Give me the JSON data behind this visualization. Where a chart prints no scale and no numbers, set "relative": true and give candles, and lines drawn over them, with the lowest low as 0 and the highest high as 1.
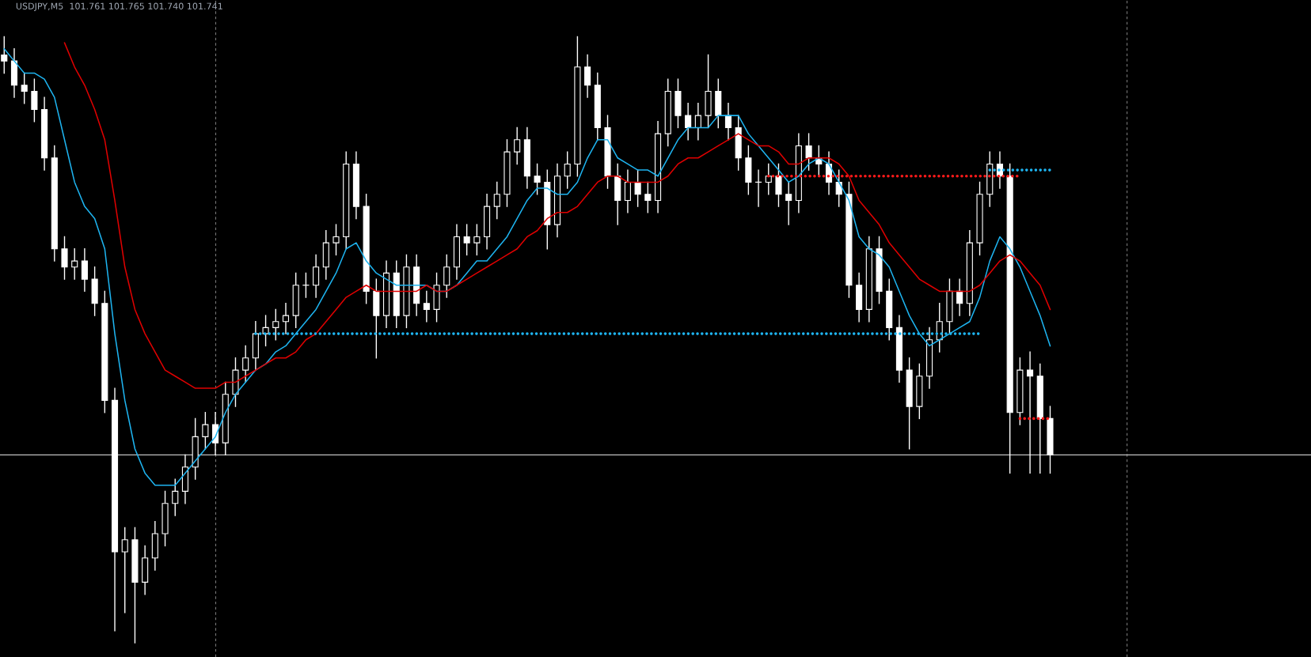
{
  "chart_data": {
    "type": "candlestick",
    "title": "USDJPY,M5  101.761 101.765 101.740 101.741",
    "relative": true,
    "color": "#ffffff",
    "legend": false,
    "categories": [
      null,
      null,
      null,
      null,
      null,
      null,
      null,
      null,
      null,
      null,
      null,
      null,
      null,
      null,
      null,
      null,
      null,
      null,
      null,
      null,
      null,
      null,
      null,
      null,
      null,
      null,
      null,
      null,
      null,
      null,
      null,
      null,
      null,
      null,
      null,
      null,
      null,
      null,
      null,
      null,
      null,
      null,
      null,
      null,
      null,
      null,
      null,
      null,
      null,
      null,
      null,
      null,
      null,
      null,
      null,
      null,
      null,
      null,
      null,
      null,
      null,
      null,
      null,
      null,
      null,
      null,
      null,
      null,
      null,
      null,
      null,
      null,
      null,
      null,
      null,
      null,
      null,
      null,
      null,
      null,
      null,
      null,
      null,
      null,
      null,
      null,
      null,
      null,
      null,
      null,
      null,
      null,
      null,
      null,
      null,
      null,
      null,
      null,
      null,
      null,
      null,
      null,
      null,
      null,
      null
    ],
    "ohlc": [
      [
        0.97,
        1.0,
        0.94,
        0.96
      ],
      [
        0.96,
        0.98,
        0.9,
        0.92
      ],
      [
        0.92,
        0.94,
        0.89,
        0.91
      ],
      [
        0.91,
        0.93,
        0.86,
        0.88
      ],
      [
        0.88,
        0.9,
        0.78,
        0.8
      ],
      [
        0.8,
        0.82,
        0.63,
        0.65
      ],
      [
        0.65,
        0.67,
        0.6,
        0.62
      ],
      [
        0.62,
        0.65,
        0.6,
        0.63
      ],
      [
        0.63,
        0.65,
        0.58,
        0.6
      ],
      [
        0.6,
        0.62,
        0.54,
        0.56
      ],
      [
        0.56,
        0.58,
        0.38,
        0.4
      ],
      [
        0.4,
        0.42,
        0.02,
        0.15
      ],
      [
        0.15,
        0.19,
        0.05,
        0.17
      ],
      [
        0.17,
        0.19,
        0.0,
        0.1
      ],
      [
        0.1,
        0.16,
        0.08,
        0.14
      ],
      [
        0.14,
        0.2,
        0.12,
        0.18
      ],
      [
        0.18,
        0.25,
        0.16,
        0.23
      ],
      [
        0.23,
        0.27,
        0.21,
        0.25
      ],
      [
        0.25,
        0.31,
        0.23,
        0.29
      ],
      [
        0.29,
        0.37,
        0.27,
        0.34
      ],
      [
        0.34,
        0.38,
        0.32,
        0.36
      ],
      [
        0.36,
        0.38,
        0.31,
        0.33
      ],
      [
        0.33,
        0.43,
        0.31,
        0.41
      ],
      [
        0.41,
        0.47,
        0.39,
        0.45
      ],
      [
        0.45,
        0.49,
        0.43,
        0.47
      ],
      [
        0.47,
        0.53,
        0.45,
        0.51
      ],
      [
        0.51,
        0.54,
        0.49,
        0.52
      ],
      [
        0.52,
        0.55,
        0.5,
        0.53
      ],
      [
        0.53,
        0.56,
        0.51,
        0.54
      ],
      [
        0.54,
        0.61,
        0.52,
        0.59
      ],
      [
        0.59,
        0.61,
        0.57,
        0.59
      ],
      [
        0.59,
        0.64,
        0.57,
        0.62
      ],
      [
        0.62,
        0.68,
        0.6,
        0.66
      ],
      [
        0.66,
        0.69,
        0.64,
        0.67
      ],
      [
        0.67,
        0.81,
        0.65,
        0.79
      ],
      [
        0.79,
        0.81,
        0.7,
        0.72
      ],
      [
        0.72,
        0.74,
        0.56,
        0.58
      ],
      [
        0.58,
        0.6,
        0.47,
        0.54
      ],
      [
        0.54,
        0.63,
        0.52,
        0.61
      ],
      [
        0.61,
        0.63,
        0.52,
        0.54
      ],
      [
        0.54,
        0.64,
        0.52,
        0.62
      ],
      [
        0.62,
        0.64,
        0.54,
        0.56
      ],
      [
        0.56,
        0.58,
        0.53,
        0.55
      ],
      [
        0.55,
        0.61,
        0.53,
        0.59
      ],
      [
        0.59,
        0.64,
        0.57,
        0.62
      ],
      [
        0.62,
        0.69,
        0.6,
        0.67
      ],
      [
        0.67,
        0.69,
        0.64,
        0.66
      ],
      [
        0.66,
        0.69,
        0.64,
        0.67
      ],
      [
        0.67,
        0.74,
        0.65,
        0.72
      ],
      [
        0.72,
        0.76,
        0.7,
        0.74
      ],
      [
        0.74,
        0.83,
        0.72,
        0.81
      ],
      [
        0.81,
        0.85,
        0.79,
        0.83
      ],
      [
        0.83,
        0.85,
        0.75,
        0.77
      ],
      [
        0.77,
        0.79,
        0.74,
        0.76
      ],
      [
        0.76,
        0.78,
        0.65,
        0.69
      ],
      [
        0.69,
        0.79,
        0.67,
        0.77
      ],
      [
        0.77,
        0.81,
        0.75,
        0.79
      ],
      [
        0.79,
        1.0,
        0.77,
        0.95
      ],
      [
        0.95,
        0.97,
        0.9,
        0.92
      ],
      [
        0.92,
        0.94,
        0.83,
        0.85
      ],
      [
        0.85,
        0.87,
        0.75,
        0.77
      ],
      [
        0.77,
        0.79,
        0.69,
        0.73
      ],
      [
        0.73,
        0.78,
        0.71,
        0.76
      ],
      [
        0.76,
        0.78,
        0.72,
        0.74
      ],
      [
        0.74,
        0.76,
        0.71,
        0.73
      ],
      [
        0.73,
        0.86,
        0.71,
        0.84
      ],
      [
        0.84,
        0.93,
        0.82,
        0.91
      ],
      [
        0.91,
        0.93,
        0.85,
        0.87
      ],
      [
        0.87,
        0.89,
        0.83,
        0.85
      ],
      [
        0.85,
        0.89,
        0.83,
        0.87
      ],
      [
        0.87,
        0.97,
        0.85,
        0.91
      ],
      [
        0.91,
        0.93,
        0.85,
        0.87
      ],
      [
        0.87,
        0.89,
        0.83,
        0.85
      ],
      [
        0.85,
        0.87,
        0.78,
        0.8
      ],
      [
        0.8,
        0.82,
        0.74,
        0.76
      ],
      [
        0.76,
        0.78,
        0.72,
        0.76
      ],
      [
        0.76,
        0.79,
        0.74,
        0.77
      ],
      [
        0.77,
        0.79,
        0.72,
        0.74
      ],
      [
        0.74,
        0.76,
        0.69,
        0.73
      ],
      [
        0.73,
        0.84,
        0.71,
        0.82
      ],
      [
        0.82,
        0.84,
        0.78,
        0.8
      ],
      [
        0.8,
        0.82,
        0.77,
        0.79
      ],
      [
        0.79,
        0.81,
        0.74,
        0.76
      ],
      [
        0.76,
        0.78,
        0.72,
        0.74
      ],
      [
        0.74,
        0.76,
        0.57,
        0.59
      ],
      [
        0.59,
        0.61,
        0.53,
        0.55
      ],
      [
        0.55,
        0.67,
        0.53,
        0.65
      ],
      [
        0.65,
        0.67,
        0.56,
        0.58
      ],
      [
        0.58,
        0.6,
        0.5,
        0.52
      ],
      [
        0.52,
        0.54,
        0.43,
        0.45
      ],
      [
        0.45,
        0.47,
        0.32,
        0.39
      ],
      [
        0.39,
        0.46,
        0.37,
        0.44
      ],
      [
        0.44,
        0.52,
        0.42,
        0.5
      ],
      [
        0.5,
        0.56,
        0.48,
        0.53
      ],
      [
        0.53,
        0.6,
        0.51,
        0.58
      ],
      [
        0.58,
        0.6,
        0.54,
        0.56
      ],
      [
        0.56,
        0.68,
        0.54,
        0.66
      ],
      [
        0.66,
        0.76,
        0.64,
        0.74
      ],
      [
        0.74,
        0.81,
        0.72,
        0.79
      ],
      [
        0.79,
        0.81,
        0.75,
        0.77
      ],
      [
        0.77,
        0.79,
        0.28,
        0.38
      ],
      [
        0.38,
        0.47,
        0.36,
        0.45
      ],
      [
        0.45,
        0.48,
        0.28,
        0.44
      ],
      [
        0.44,
        0.46,
        0.28,
        0.37
      ],
      [
        0.37,
        0.39,
        0.28,
        0.31
      ]
    ],
    "series": [
      {
        "type": "line",
        "color": "#1eb4f0",
        "line_style": "solid",
        "values": [
          0.98,
          0.96,
          0.94,
          0.94,
          0.93,
          0.9,
          0.83,
          0.76,
          0.72,
          0.7,
          0.65,
          0.51,
          0.4,
          0.32,
          0.28,
          0.26,
          0.26,
          0.26,
          0.28,
          0.3,
          0.32,
          0.34,
          0.38,
          0.41,
          0.43,
          0.45,
          0.46,
          0.48,
          0.49,
          0.51,
          0.53,
          0.55,
          0.58,
          0.61,
          0.65,
          0.66,
          0.63,
          0.61,
          0.6,
          0.59,
          0.59,
          0.59,
          0.59,
          0.58,
          0.58,
          0.59,
          0.61,
          0.63,
          0.63,
          0.65,
          0.67,
          0.7,
          0.73,
          0.75,
          0.75,
          0.74,
          0.74,
          0.76,
          0.8,
          0.83,
          0.83,
          0.8,
          0.79,
          0.78,
          0.78,
          0.77,
          0.8,
          0.83,
          0.85,
          0.85,
          0.85,
          0.87,
          0.87,
          0.87,
          0.84,
          0.82,
          0.8,
          0.78,
          0.76,
          0.77,
          0.79,
          0.8,
          0.79,
          0.76,
          0.73,
          0.67,
          0.65,
          0.64,
          0.62,
          0.58,
          0.54,
          0.51,
          0.49,
          0.5,
          0.51,
          0.52,
          0.53,
          0.57,
          0.63,
          0.67,
          0.65,
          0.62,
          0.58,
          0.54,
          0.49
        ]
      },
      {
        "type": "line",
        "color": "#e00000",
        "line_style": "solid",
        "values": [
          null,
          null,
          null,
          null,
          null,
          null,
          0.99,
          0.95,
          0.92,
          0.88,
          0.83,
          0.73,
          0.62,
          0.55,
          0.51,
          0.48,
          0.45,
          0.44,
          0.43,
          0.42,
          0.42,
          0.42,
          0.43,
          0.43,
          0.44,
          0.45,
          0.46,
          0.47,
          0.47,
          0.48,
          0.5,
          0.51,
          0.53,
          0.55,
          0.57,
          0.58,
          0.59,
          0.58,
          0.58,
          0.58,
          0.58,
          0.58,
          0.59,
          0.58,
          0.58,
          0.59,
          0.6,
          0.61,
          0.62,
          0.63,
          0.64,
          0.65,
          0.67,
          0.68,
          0.7,
          0.71,
          0.71,
          0.72,
          0.74,
          0.76,
          0.77,
          0.77,
          0.76,
          0.76,
          0.76,
          0.76,
          0.77,
          0.79,
          0.8,
          0.8,
          0.81,
          0.82,
          0.83,
          0.84,
          0.83,
          0.82,
          0.82,
          0.81,
          0.79,
          0.79,
          0.8,
          0.8,
          0.8,
          0.79,
          0.77,
          0.73,
          0.71,
          0.69,
          0.66,
          0.64,
          0.62,
          0.6,
          0.59,
          0.58,
          0.58,
          0.58,
          0.58,
          0.59,
          0.61,
          0.63,
          0.64,
          0.63,
          0.61,
          0.59,
          0.55
        ]
      },
      {
        "type": "line",
        "color": "#1eb4f0",
        "line_style": "dotted",
        "values": [
          null,
          null,
          null,
          null,
          null,
          null,
          null,
          null,
          null,
          null,
          null,
          null,
          null,
          null,
          null,
          null,
          null,
          null,
          null,
          null,
          null,
          null,
          null,
          null,
          null,
          0.51,
          0.51,
          0.51,
          0.51,
          0.51,
          0.51,
          0.51,
          0.51,
          0.51,
          0.51,
          0.51,
          0.51,
          0.51,
          0.51,
          0.51,
          0.51,
          0.51,
          0.51,
          0.51,
          0.51,
          0.51,
          0.51,
          0.51,
          0.51,
          0.51,
          0.51,
          0.51,
          0.51,
          0.51,
          0.51,
          0.51,
          0.51,
          0.51,
          0.51,
          0.51,
          0.51,
          0.51,
          0.51,
          0.51,
          0.51,
          0.51,
          0.51,
          0.51,
          0.51,
          0.51,
          0.51,
          0.51,
          0.51,
          0.51,
          0.51,
          0.51,
          0.51,
          0.51,
          0.51,
          0.51,
          0.51,
          0.51,
          0.51,
          0.51,
          0.51,
          0.51,
          0.51,
          0.51,
          0.51,
          0.51,
          0.51,
          0.51,
          0.51,
          0.51,
          0.51,
          0.51,
          0.51,
          0.51,
          null,
          null,
          null,
          null,
          null,
          null,
          null
        ]
      },
      {
        "type": "line",
        "color": "#ff1a1a",
        "line_style": "dotted",
        "values": [
          null,
          null,
          null,
          null,
          null,
          null,
          null,
          null,
          null,
          null,
          null,
          null,
          null,
          null,
          null,
          null,
          null,
          null,
          null,
          null,
          null,
          null,
          null,
          null,
          null,
          null,
          null,
          null,
          null,
          null,
          null,
          null,
          null,
          null,
          null,
          null,
          null,
          null,
          null,
          null,
          null,
          null,
          null,
          null,
          null,
          null,
          null,
          null,
          null,
          null,
          null,
          null,
          null,
          null,
          null,
          null,
          null,
          null,
          null,
          null,
          null,
          null,
          null,
          null,
          null,
          null,
          null,
          null,
          null,
          null,
          null,
          null,
          null,
          null,
          null,
          null,
          0.77,
          0.77,
          0.77,
          0.77,
          0.77,
          0.77,
          0.77,
          0.77,
          0.77,
          0.77,
          0.77,
          0.77,
          0.77,
          0.77,
          0.77,
          0.77,
          0.77,
          0.77,
          0.77,
          0.77,
          0.77,
          0.77,
          0.77,
          0.77,
          0.77,
          0.77,
          null,
          null,
          null
        ]
      },
      {
        "type": "line",
        "color": "#1eb4f0",
        "line_style": "dotted",
        "values": [
          null,
          null,
          null,
          null,
          null,
          null,
          null,
          null,
          null,
          null,
          null,
          null,
          null,
          null,
          null,
          null,
          null,
          null,
          null,
          null,
          null,
          null,
          null,
          null,
          null,
          null,
          null,
          null,
          null,
          null,
          null,
          null,
          null,
          null,
          null,
          null,
          null,
          null,
          null,
          null,
          null,
          null,
          null,
          null,
          null,
          null,
          null,
          null,
          null,
          null,
          null,
          null,
          null,
          null,
          null,
          null,
          null,
          null,
          null,
          null,
          null,
          null,
          null,
          null,
          null,
          null,
          null,
          null,
          null,
          null,
          null,
          null,
          null,
          null,
          null,
          null,
          null,
          null,
          null,
          null,
          null,
          null,
          null,
          null,
          null,
          null,
          null,
          null,
          null,
          null,
          null,
          null,
          null,
          null,
          null,
          null,
          null,
          null,
          0.78,
          0.78,
          0.78,
          0.78,
          0.78,
          0.78,
          0.78
        ]
      },
      {
        "type": "line",
        "color": "#ff1a1a",
        "line_style": "dotted",
        "values": [
          null,
          null,
          null,
          null,
          null,
          null,
          null,
          null,
          null,
          null,
          null,
          null,
          null,
          null,
          null,
          null,
          null,
          null,
          null,
          null,
          null,
          null,
          null,
          null,
          null,
          null,
          null,
          null,
          null,
          null,
          null,
          null,
          null,
          null,
          null,
          null,
          null,
          null,
          null,
          null,
          null,
          null,
          null,
          null,
          null,
          null,
          null,
          null,
          null,
          null,
          null,
          null,
          null,
          null,
          null,
          null,
          null,
          null,
          null,
          null,
          null,
          null,
          null,
          null,
          null,
          null,
          null,
          null,
          null,
          null,
          null,
          null,
          null,
          null,
          null,
          null,
          null,
          null,
          null,
          null,
          null,
          null,
          null,
          null,
          null,
          null,
          null,
          null,
          null,
          null,
          null,
          null,
          null,
          null,
          null,
          null,
          null,
          null,
          null,
          null,
          null,
          0.37,
          0.37,
          0.37,
          0.37
        ]
      }
    ],
    "ref_lines": [
      {
        "axis": "y",
        "value": 0.31,
        "color": "#c0c0c0",
        "line_style": "solid"
      }
    ]
  }
}
